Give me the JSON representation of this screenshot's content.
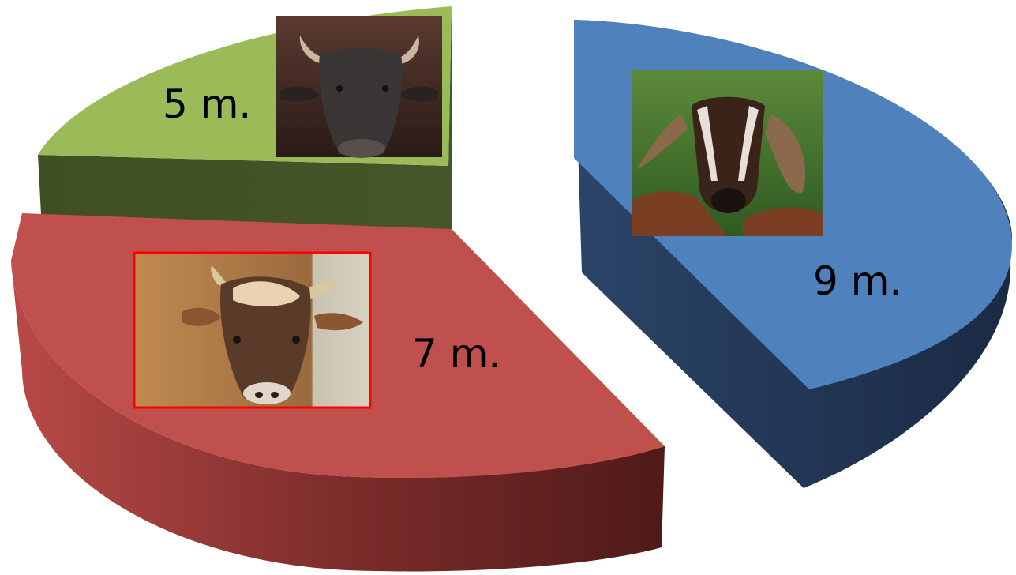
{
  "chart_data": {
    "type": "pie",
    "title": "",
    "three_d": true,
    "exploded": true,
    "legend": "none",
    "slices": [
      {
        "label": "9 m.",
        "value": 9,
        "color": "#4f81bd",
        "side_color": "#1f3150",
        "picture": "goat-photo"
      },
      {
        "label": "7 m.",
        "value": 7,
        "color": "#c0504d",
        "side_color": "#6b2322",
        "picture": "bull-photo"
      },
      {
        "label": "5 m.",
        "value": 5,
        "color": "#9bbb59",
        "side_color": "#3f4f22",
        "picture": "buffalo-photo"
      }
    ]
  }
}
